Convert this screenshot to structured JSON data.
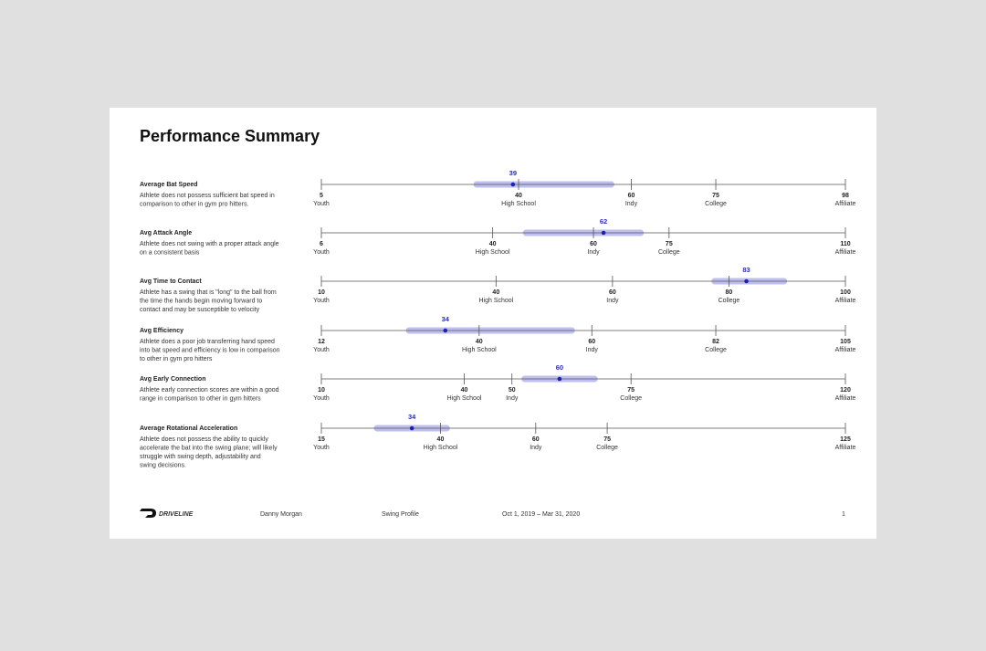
{
  "title": "Performance Summary",
  "metrics": [
    {
      "name": "Average Bat Speed",
      "description": [
        "Athlete does not possess sufficient bat speed in",
        "comparison to other in gym pro hitters."
      ],
      "value": 39,
      "range": [
        32,
        57
      ],
      "ticks": [
        {
          "value": 5,
          "name": "Youth"
        },
        {
          "value": 40,
          "name": "High School"
        },
        {
          "value": 60,
          "name": "Indy"
        },
        {
          "value": 75,
          "name": "College"
        },
        {
          "value": 98,
          "name": "Affiliate"
        }
      ]
    },
    {
      "name": "Avg Attack Angle",
      "description": [
        "Athlete does not swing with a proper attack angle",
        "on a consistent basis"
      ],
      "value": 62,
      "range": [
        46,
        70
      ],
      "ticks": [
        {
          "value": 6,
          "name": "Youth"
        },
        {
          "value": 40,
          "name": "High School"
        },
        {
          "value": 60,
          "name": "Indy"
        },
        {
          "value": 75,
          "name": "College"
        },
        {
          "value": 110,
          "name": "Affiliate"
        }
      ]
    },
    {
      "name": "Avg Time to Contact",
      "description": [
        "Athlete has a swing that is \"long\" to the ball from",
        "the time the hands begin moving forward to",
        "contact and may be susceptible to velocity"
      ],
      "value": 83,
      "range": [
        77,
        90
      ],
      "ticks": [
        {
          "value": 10,
          "name": "Youth"
        },
        {
          "value": 40,
          "name": "High School"
        },
        {
          "value": 60,
          "name": "Indy"
        },
        {
          "value": 80,
          "name": "College"
        },
        {
          "value": 100,
          "name": "Affiliate"
        }
      ]
    },
    {
      "name": "Avg Efficiency",
      "description": [
        "Athlete does a poor job transferring hand speed",
        "into bat speed and efficiency is low in comparison",
        "to other in gym pro hitters"
      ],
      "value": 34,
      "range": [
        27,
        57
      ],
      "ticks": [
        {
          "value": 12,
          "name": "Youth"
        },
        {
          "value": 40,
          "name": "High School"
        },
        {
          "value": 60,
          "name": "Indy"
        },
        {
          "value": 82,
          "name": "College"
        },
        {
          "value": 105,
          "name": "Affiliate"
        }
      ]
    },
    {
      "name": "Avg Early Connection",
      "description": [
        "Athlete early connection scores are within a good",
        "range in comparison to other in gym hitters"
      ],
      "value": 60,
      "range": [
        52,
        68
      ],
      "ticks": [
        {
          "value": 10,
          "name": "Youth"
        },
        {
          "value": 40,
          "name": "High School"
        },
        {
          "value": 50,
          "name": "Indy"
        },
        {
          "value": 75,
          "name": "College"
        },
        {
          "value": 120,
          "name": "Affiliate"
        }
      ]
    },
    {
      "name": "Average Rotational Acceleration",
      "description": [
        "Athlete does not possess the ability to quickly",
        "accelerate the bat into the swing plane; will likely",
        "struggle with swing depth, adjustability and",
        "swing decisions."
      ],
      "value": 34,
      "range": [
        26,
        42
      ],
      "ticks": [
        {
          "value": 15,
          "name": "Youth"
        },
        {
          "value": 40,
          "name": "High School"
        },
        {
          "value": 60,
          "name": "Indy"
        },
        {
          "value": 75,
          "name": "College"
        },
        {
          "value": 125,
          "name": "Affiliate"
        }
      ]
    }
  ],
  "footer": {
    "brand": "DRIVELINE",
    "athlete": "Danny Morgan",
    "report": "Swing Profile",
    "dates": "Oct 1, 2019 – Mar 31, 2020",
    "page": "1"
  }
}
